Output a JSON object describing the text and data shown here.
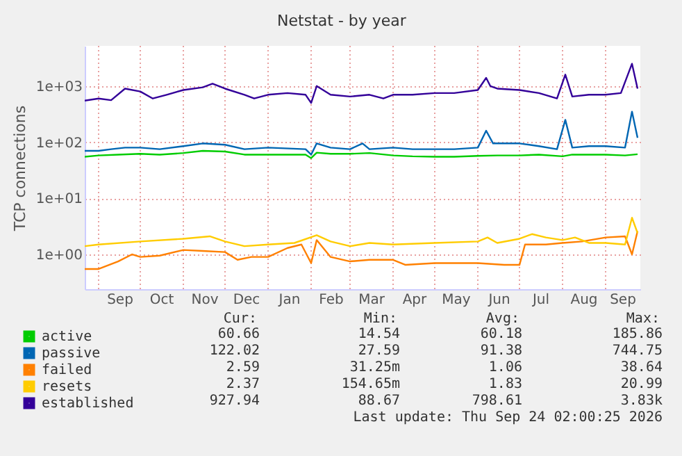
{
  "chart_data": {
    "type": "line",
    "title": "Netstat - by year",
    "ylabel": "TCP connections",
    "log": "y",
    "grid": true,
    "legend": "bottom",
    "marker": "none",
    "line_style": "solid",
    "ylim": [
      0.24,
      5200
    ],
    "yticks": [
      {
        "value": 1,
        "label": "1e+00"
      },
      {
        "value": 10,
        "label": "1e+01"
      },
      {
        "value": 100,
        "label": "1e+02"
      },
      {
        "value": 1000,
        "label": "1e+03"
      }
    ],
    "xlim": [
      "2025-08-22",
      "2026-09-26"
    ],
    "xticks": [
      {
        "value": "2025-09-01",
        "label": null
      },
      {
        "value": "2025-09-16",
        "label": "Sep"
      },
      {
        "value": "2025-10-01",
        "label": null
      },
      {
        "value": "2025-10-16",
        "label": "Oct"
      },
      {
        "value": "2025-11-01",
        "label": null
      },
      {
        "value": "2025-11-16",
        "label": "Nov"
      },
      {
        "value": "2025-12-01",
        "label": null
      },
      {
        "value": "2025-12-16",
        "label": "Dec"
      },
      {
        "value": "2026-01-01",
        "label": null
      },
      {
        "value": "2026-01-16",
        "label": "Jan"
      },
      {
        "value": "2026-02-01",
        "label": null
      },
      {
        "value": "2026-02-15",
        "label": "Feb"
      },
      {
        "value": "2026-03-01",
        "label": null
      },
      {
        "value": "2026-03-16",
        "label": "Mar"
      },
      {
        "value": "2026-04-01",
        "label": null
      },
      {
        "value": "2026-04-16",
        "label": "Apr"
      },
      {
        "value": "2026-05-01",
        "label": null
      },
      {
        "value": "2026-05-16",
        "label": "May"
      },
      {
        "value": "2026-06-01",
        "label": null
      },
      {
        "value": "2026-06-16",
        "label": "Jun"
      },
      {
        "value": "2026-07-01",
        "label": null
      },
      {
        "value": "2026-07-16",
        "label": "Jul"
      },
      {
        "value": "2026-08-01",
        "label": null
      },
      {
        "value": "2026-08-16",
        "label": "Aug"
      },
      {
        "value": "2026-09-01",
        "label": null
      },
      {
        "value": "2026-09-13",
        "label": "Sep"
      }
    ],
    "series": [
      {
        "name": "active",
        "color": "#00cc00",
        "x": [
          "2025-08-22",
          "2025-09-01",
          "2025-09-15",
          "2025-10-01",
          "2025-10-15",
          "2025-11-01",
          "2025-11-15",
          "2025-12-01",
          "2025-12-15",
          "2026-01-01",
          "2026-01-28",
          "2026-02-01",
          "2026-02-05",
          "2026-02-15",
          "2026-03-01",
          "2026-03-15",
          "2026-04-01",
          "2026-04-15",
          "2026-05-01",
          "2026-05-15",
          "2026-06-01",
          "2026-06-15",
          "2026-07-01",
          "2026-07-15",
          "2026-08-01",
          "2026-08-08",
          "2026-08-20",
          "2026-09-01",
          "2026-09-15",
          "2026-09-24"
        ],
        "values": [
          55,
          58,
          60,
          62,
          60,
          64,
          70,
          68,
          60,
          60,
          60,
          52,
          65,
          62,
          62,
          64,
          58,
          56,
          55,
          55,
          57,
          58,
          58,
          60,
          56,
          60,
          60,
          60,
          58,
          61
        ]
      },
      {
        "name": "passive",
        "color": "#0066b3",
        "x": [
          "2025-08-22",
          "2025-09-01",
          "2025-09-10",
          "2025-09-20",
          "2025-10-01",
          "2025-10-15",
          "2025-11-01",
          "2025-11-15",
          "2025-12-01",
          "2025-12-15",
          "2026-01-01",
          "2026-01-28",
          "2026-02-01",
          "2026-02-05",
          "2026-02-15",
          "2026-03-01",
          "2026-03-10",
          "2026-03-15",
          "2026-04-01",
          "2026-04-15",
          "2026-05-01",
          "2026-05-15",
          "2026-06-01",
          "2026-06-07",
          "2026-06-12",
          "2026-07-01",
          "2026-07-15",
          "2026-07-28",
          "2026-08-03",
          "2026-08-08",
          "2026-08-20",
          "2026-09-01",
          "2026-09-15",
          "2026-09-20",
          "2026-09-24"
        ],
        "values": [
          70,
          70,
          75,
          80,
          80,
          75,
          85,
          95,
          90,
          75,
          80,
          75,
          60,
          95,
          80,
          75,
          95,
          75,
          80,
          75,
          75,
          75,
          80,
          160,
          95,
          95,
          85,
          75,
          250,
          80,
          85,
          85,
          80,
          350,
          120
        ]
      },
      {
        "name": "failed",
        "color": "#ff8000",
        "x": [
          "2025-08-22",
          "2025-09-01",
          "2025-09-15",
          "2025-09-25",
          "2025-10-01",
          "2025-10-15",
          "2025-11-01",
          "2025-11-15",
          "2025-12-01",
          "2025-12-10",
          "2025-12-20",
          "2026-01-01",
          "2026-01-15",
          "2026-01-25",
          "2026-02-01",
          "2026-02-05",
          "2026-02-15",
          "2026-03-01",
          "2026-03-15",
          "2026-04-01",
          "2026-04-10",
          "2026-05-01",
          "2026-06-01",
          "2026-06-20",
          "2026-07-01",
          "2026-07-05",
          "2026-07-20",
          "2026-08-01",
          "2026-08-15",
          "2026-09-01",
          "2026-09-15",
          "2026-09-20",
          "2026-09-24"
        ],
        "values": [
          0.55,
          0.55,
          0.75,
          1.0,
          0.9,
          0.95,
          1.2,
          1.15,
          1.1,
          0.8,
          0.9,
          0.9,
          1.3,
          1.5,
          0.7,
          1.8,
          0.9,
          0.75,
          0.8,
          0.8,
          0.65,
          0.7,
          0.7,
          0.65,
          0.65,
          1.5,
          1.5,
          1.6,
          1.7,
          2.0,
          2.1,
          1.0,
          2.6
        ]
      },
      {
        "name": "resets",
        "color": "#ffcc00",
        "x": [
          "2025-08-22",
          "2025-09-01",
          "2025-10-01",
          "2025-11-01",
          "2025-11-20",
          "2025-12-01",
          "2025-12-15",
          "2026-01-01",
          "2026-01-20",
          "2026-02-05",
          "2026-02-15",
          "2026-03-01",
          "2026-03-15",
          "2026-04-01",
          "2026-05-01",
          "2026-06-01",
          "2026-06-08",
          "2026-06-15",
          "2026-07-01",
          "2026-07-10",
          "2026-07-20",
          "2026-08-01",
          "2026-08-10",
          "2026-08-20",
          "2026-09-01",
          "2026-09-15",
          "2026-09-20",
          "2026-09-24"
        ],
        "values": [
          1.4,
          1.5,
          1.7,
          1.9,
          2.1,
          1.7,
          1.4,
          1.5,
          1.6,
          2.2,
          1.7,
          1.4,
          1.6,
          1.5,
          1.6,
          1.7,
          2.0,
          1.6,
          1.9,
          2.3,
          2.0,
          1.8,
          2.0,
          1.6,
          1.6,
          1.5,
          4.5,
          2.4
        ]
      },
      {
        "name": "established",
        "color": "#330099",
        "x": [
          "2025-08-22",
          "2025-09-01",
          "2025-09-10",
          "2025-09-20",
          "2025-10-01",
          "2025-10-10",
          "2025-10-20",
          "2025-11-01",
          "2025-11-15",
          "2025-11-22",
          "2025-12-01",
          "2025-12-15",
          "2025-12-22",
          "2026-01-01",
          "2026-01-15",
          "2026-01-28",
          "2026-02-01",
          "2026-02-05",
          "2026-02-15",
          "2026-03-01",
          "2026-03-15",
          "2026-03-25",
          "2026-04-01",
          "2026-04-15",
          "2026-05-01",
          "2026-05-15",
          "2026-06-01",
          "2026-06-07",
          "2026-06-10",
          "2026-06-15",
          "2026-07-01",
          "2026-07-15",
          "2026-07-28",
          "2026-08-03",
          "2026-08-08",
          "2026-08-20",
          "2026-09-01",
          "2026-09-12",
          "2026-09-20",
          "2026-09-24"
        ],
        "values": [
          550,
          600,
          560,
          900,
          800,
          600,
          700,
          850,
          950,
          1100,
          900,
          700,
          600,
          700,
          750,
          700,
          500,
          1000,
          700,
          650,
          700,
          600,
          700,
          700,
          750,
          750,
          850,
          1400,
          1000,
          900,
          850,
          750,
          600,
          1600,
          650,
          700,
          700,
          750,
          2500,
          900
        ]
      }
    ],
    "annotations": [
      "Cur:",
      "Min:",
      "Avg:",
      "Max:",
      "60.66",
      "14.54",
      "60.18",
      "185.86",
      "122.02",
      "27.59",
      "91.38",
      "744.75",
      "2.59",
      "31.25m",
      "1.06",
      "38.64",
      "2.37",
      "154.65m",
      "1.83",
      "20.99",
      "927.94",
      "88.67",
      "798.61",
      "3.83k",
      "Last update: Thu Sep 24 02:00:25 2026"
    ]
  }
}
